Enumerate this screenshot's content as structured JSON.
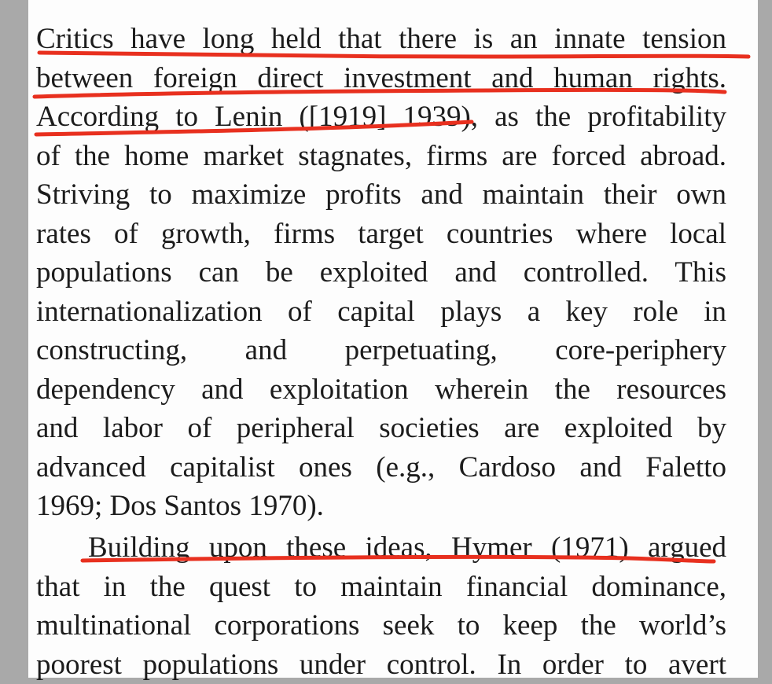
{
  "document": {
    "paragraph_1": [
      "Critics have long held that there is an innate tension",
      "between foreign direct investment and human rights.",
      "According to Lenin ([1919] 1939), as the profitability",
      "of the home market stagnates, firms are forced abroad.",
      "Striving to maximize profits and maintain their own",
      "rates of growth, firms target countries where local",
      "populations can be exploited and controlled. This",
      "internationalization of capital plays a key role in",
      "constructing, and perpetuating, core-periphery",
      "dependency and exploitation wherein the resources",
      "and labor of peripheral societies are exploited by",
      "advanced capitalist ones (e.g., Cardoso and Faletto",
      "1969; Dos Santos 1970)."
    ],
    "paragraph_2": [
      "Building upon these ideas, Hymer (1971) argued",
      "that in the quest to maintain financial dominance,",
      "multinational corporations seek to keep the world’s",
      "poorest populations under control. In order to avert"
    ]
  },
  "annotations": {
    "underline_color": "#e8301f"
  }
}
